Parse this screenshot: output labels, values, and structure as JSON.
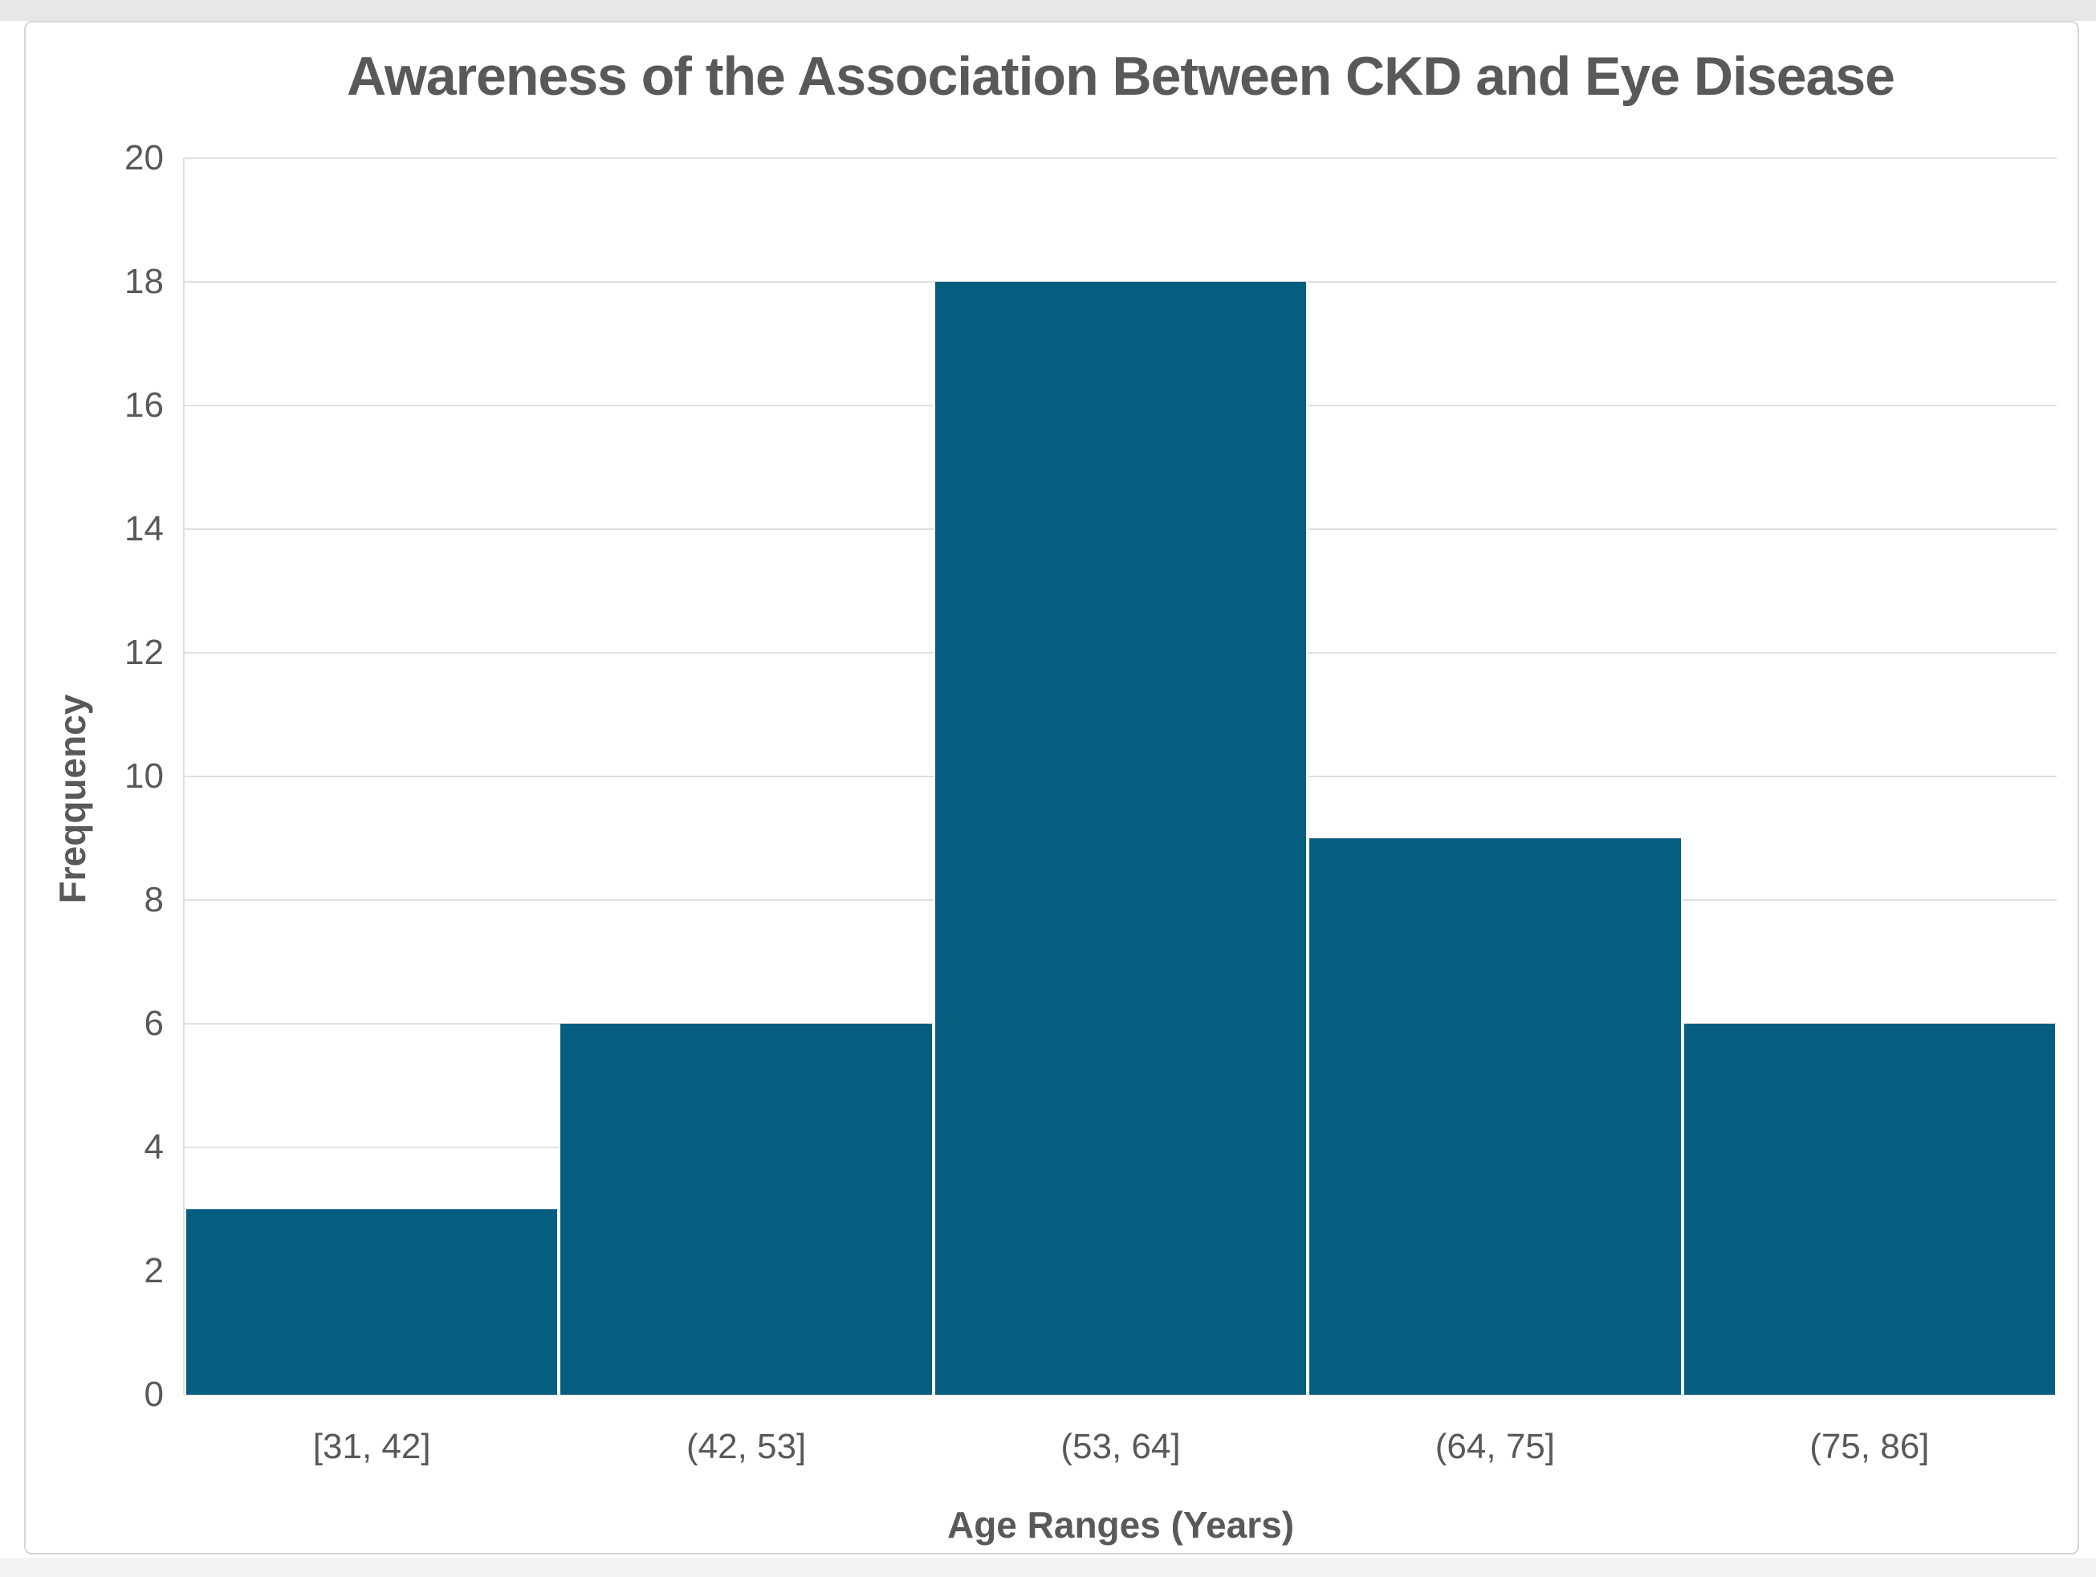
{
  "chart_data": {
    "type": "bar",
    "title": "Awareness of the Association Between CKD and Eye Disease",
    "xlabel": "Age Ranges (Years)",
    "ylabel": "Freqquency",
    "categories": [
      "[31, 42]",
      "(42, 53]",
      "(53, 64]",
      "(64, 75]",
      "(75, 86]"
    ],
    "values": [
      3,
      6,
      18,
      9,
      6
    ],
    "ylim": [
      0,
      20
    ],
    "ytick_step": 2,
    "grid": true,
    "legend_position": "none",
    "bar_style": "histogram-adjacent-bins",
    "colors": {
      "bar": "#055E80",
      "gridline": "#E0E0E0",
      "text": "#595959",
      "card_border": "#D5D5D5"
    }
  }
}
